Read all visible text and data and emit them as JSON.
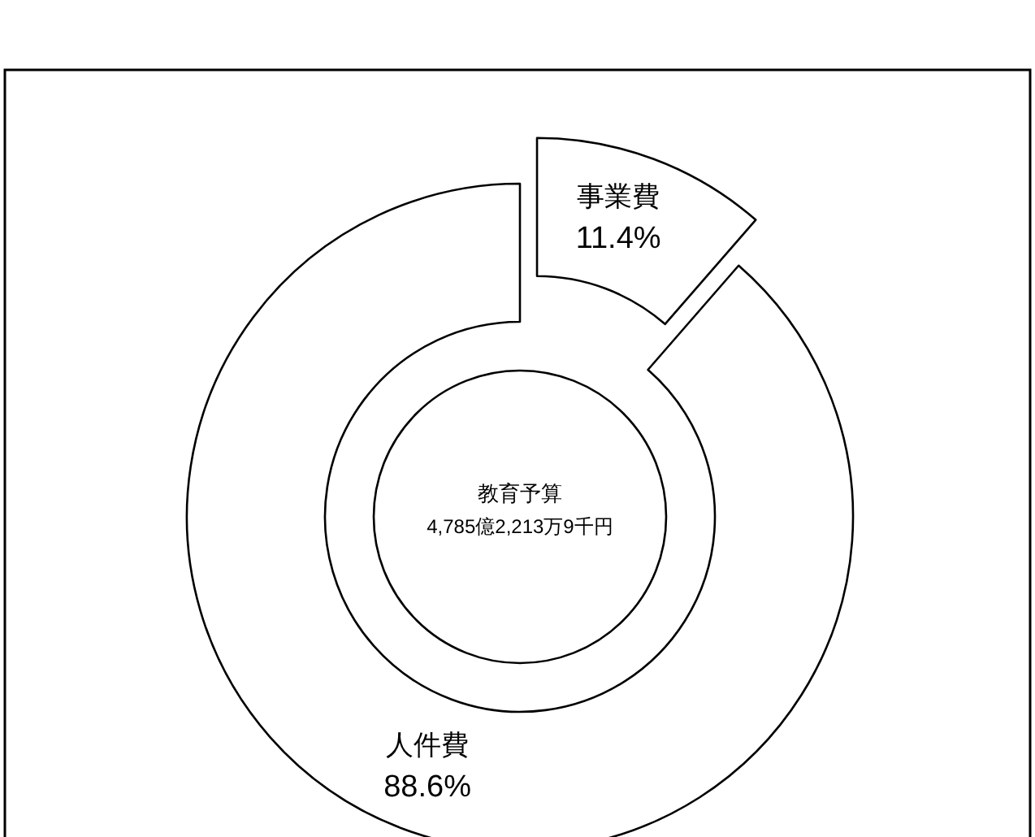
{
  "chart_data": {
    "type": "donut",
    "categories": [
      "事業費",
      "人件費"
    ],
    "values": [
      11.4,
      88.6
    ],
    "colors": [
      "#ffffff",
      "#ffffff"
    ],
    "value_labels": [
      "11.4%",
      "88.6%"
    ],
    "annotations": [
      "教育予算",
      "4,785億2,213万9千円"
    ]
  }
}
